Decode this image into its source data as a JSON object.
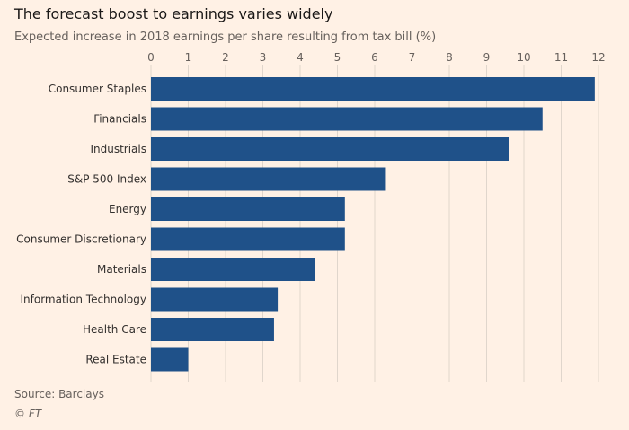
{
  "chart_data": {
    "type": "bar",
    "orientation": "horizontal",
    "title": "The forecast boost to earnings varies widely",
    "subtitle": "Expected increase in 2018 earnings per share resulting from tax bill (%)",
    "categories": [
      "Consumer Staples",
      "Financials",
      "Industrials",
      "S&P 500 Index",
      "Energy",
      "Consumer Discretionary",
      "Materials",
      "Information Technology",
      "Health Care",
      "Real Estate"
    ],
    "values": [
      11.9,
      10.5,
      9.6,
      6.3,
      5.2,
      5.2,
      4.4,
      3.4,
      3.3,
      1.0
    ],
    "xlim": [
      0,
      12
    ],
    "xticks": [
      "0",
      "1",
      "2",
      "3",
      "4",
      "5",
      "6",
      "7",
      "8",
      "9",
      "10",
      "11",
      "12"
    ],
    "xaxis_position": "top",
    "grid": true,
    "bar_color": "#1f5189",
    "background": "#fff1e5",
    "source": "Source: Barclays",
    "credit": "© FT"
  }
}
